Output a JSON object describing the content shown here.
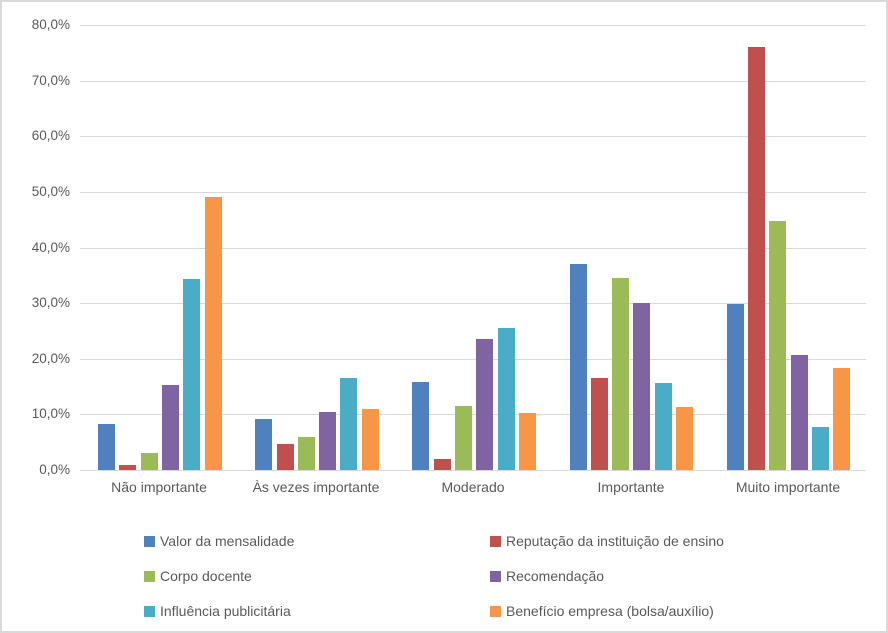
{
  "chart_data": {
    "type": "bar",
    "title": "",
    "xlabel": "",
    "ylabel": "",
    "categories": [
      "Não importante",
      "Às vezes importante",
      "Moderado",
      "Importante",
      "Muito importante"
    ],
    "series": [
      {
        "name": "Valor da mensalidade",
        "color": "#4F81BD",
        "values": [
          8.2,
          9.1,
          15.8,
          37.0,
          29.9
        ]
      },
      {
        "name": "Reputação da instituição de ensino",
        "color": "#C0504D",
        "values": [
          0.9,
          4.6,
          2.0,
          16.5,
          76.0
        ]
      },
      {
        "name": "Corpo docente",
        "color": "#9BBB59",
        "values": [
          3.0,
          6.0,
          11.5,
          34.5,
          44.7
        ]
      },
      {
        "name": "Recomendação",
        "color": "#8064A2",
        "values": [
          15.3,
          10.4,
          23.5,
          30.0,
          20.7
        ]
      },
      {
        "name": "Influência publicitária",
        "color": "#4BACC6",
        "values": [
          34.4,
          16.5,
          25.6,
          15.6,
          7.7
        ]
      },
      {
        "name": "Benefício empresa (bolsa/auxílio)",
        "color": "#F79646",
        "values": [
          49.1,
          10.9,
          10.3,
          11.3,
          18.3
        ]
      }
    ],
    "ylim": [
      0,
      80
    ],
    "ytick_step": 10,
    "ytick_labels": [
      "0,0%",
      "10,0%",
      "20,0%",
      "30,0%",
      "40,0%",
      "50,0%",
      "60,0%",
      "70,0%",
      "80,0%"
    ],
    "grid": true,
    "legend_position": "bottom",
    "colors": {
      "gridline": "#d9d9d9",
      "axis_text": "#595959",
      "border": "#d9d9d9",
      "background": "#ffffff"
    }
  }
}
